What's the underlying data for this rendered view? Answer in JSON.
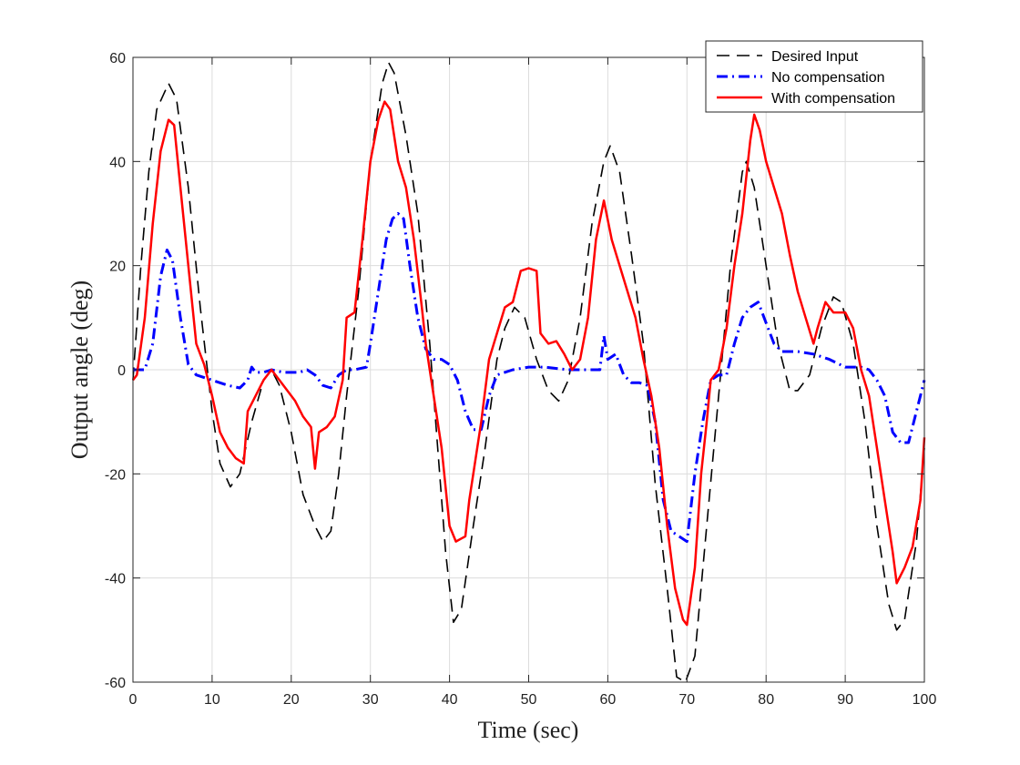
{
  "chart_data": {
    "type": "line",
    "title": "",
    "xlabel": "Time (sec)",
    "ylabel": "Output angle (deg)",
    "xlim": [
      0,
      100
    ],
    "ylim": [
      -60,
      60
    ],
    "xticks": [
      0,
      10,
      20,
      30,
      40,
      50,
      60,
      70,
      80,
      90,
      100
    ],
    "yticks": [
      -60,
      -40,
      -20,
      0,
      20,
      40,
      60
    ],
    "grid": true,
    "legend_position": "top-right",
    "series": [
      {
        "name": "Desired Input",
        "color": "#000000",
        "style": "dashed",
        "points": [
          [
            0,
            -2
          ],
          [
            1,
            20
          ],
          [
            2,
            38
          ],
          [
            3,
            50
          ],
          [
            4.5,
            55
          ],
          [
            5.5,
            52
          ],
          [
            7,
            35
          ],
          [
            8.5,
            12
          ],
          [
            10,
            -8
          ],
          [
            11,
            -18
          ],
          [
            12.3,
            -22.5
          ],
          [
            13.5,
            -20
          ],
          [
            15,
            -10
          ],
          [
            16.5,
            -2
          ],
          [
            17.5,
            0
          ],
          [
            18.5,
            -3
          ],
          [
            20,
            -12
          ],
          [
            21.5,
            -24
          ],
          [
            23,
            -30
          ],
          [
            24,
            -33
          ],
          [
            25,
            -31
          ],
          [
            26,
            -20
          ],
          [
            27,
            -5
          ],
          [
            28.5,
            15
          ],
          [
            30,
            40
          ],
          [
            31.5,
            55
          ],
          [
            32.3,
            59
          ],
          [
            33,
            57
          ],
          [
            34.5,
            45
          ],
          [
            36,
            30
          ],
          [
            37.5,
            5
          ],
          [
            38.5,
            -15
          ],
          [
            39.5,
            -35
          ],
          [
            40.5,
            -48.5
          ],
          [
            41.5,
            -46
          ],
          [
            43,
            -30
          ],
          [
            44.5,
            -15
          ],
          [
            46,
            2
          ],
          [
            47,
            8
          ],
          [
            48.2,
            12
          ],
          [
            49.5,
            10
          ],
          [
            51,
            2
          ],
          [
            52.5,
            -4
          ],
          [
            53.8,
            -6
          ],
          [
            55,
            -2
          ],
          [
            56.5,
            10
          ],
          [
            58,
            28
          ],
          [
            59.5,
            40
          ],
          [
            60.3,
            43
          ],
          [
            61.5,
            38
          ],
          [
            63,
            22
          ],
          [
            64.5,
            5
          ],
          [
            66,
            -22
          ],
          [
            67.5,
            -42
          ],
          [
            68.7,
            -59
          ],
          [
            69.8,
            -60
          ],
          [
            71,
            -55
          ],
          [
            72.5,
            -30
          ],
          [
            74,
            -5
          ],
          [
            75.5,
            20
          ],
          [
            77,
            38
          ],
          [
            77.5,
            40
          ],
          [
            78.5,
            35
          ],
          [
            80,
            20
          ],
          [
            81.5,
            5
          ],
          [
            83,
            -4
          ],
          [
            84,
            -4
          ],
          [
            85.5,
            -1
          ],
          [
            87,
            8
          ],
          [
            88.5,
            14
          ],
          [
            89.5,
            13
          ],
          [
            91,
            5
          ],
          [
            92.5,
            -10
          ],
          [
            94,
            -30
          ],
          [
            95.5,
            -45
          ],
          [
            96.5,
            -50
          ],
          [
            97.5,
            -48
          ],
          [
            99,
            -33
          ],
          [
            100,
            -15
          ]
        ]
      },
      {
        "name": "No compensation",
        "color": "#0000ff",
        "style": "dashdot",
        "points": [
          [
            0,
            0
          ],
          [
            1.5,
            0
          ],
          [
            2.5,
            5
          ],
          [
            3.5,
            18
          ],
          [
            4.3,
            23
          ],
          [
            5,
            21
          ],
          [
            6,
            10
          ],
          [
            7,
            1
          ],
          [
            8,
            -1
          ],
          [
            10,
            -2
          ],
          [
            12,
            -3
          ],
          [
            13.5,
            -3.5
          ],
          [
            14.5,
            -2
          ],
          [
            15,
            0.5
          ],
          [
            15.5,
            -0.5
          ],
          [
            16.5,
            -0.5
          ],
          [
            17.5,
            0
          ],
          [
            19,
            -0.5
          ],
          [
            21,
            -0.5
          ],
          [
            22,
            0
          ],
          [
            23,
            -1
          ],
          [
            24,
            -3
          ],
          [
            25,
            -3.5
          ],
          [
            26,
            -1
          ],
          [
            27,
            0
          ],
          [
            28,
            0
          ],
          [
            29.5,
            0.5
          ],
          [
            30,
            5
          ],
          [
            31,
            15
          ],
          [
            32,
            25
          ],
          [
            32.8,
            29
          ],
          [
            33.5,
            30
          ],
          [
            34.2,
            29
          ],
          [
            35,
            20
          ],
          [
            36,
            10
          ],
          [
            37,
            4
          ],
          [
            38,
            2
          ],
          [
            39,
            2
          ],
          [
            40,
            1
          ],
          [
            41,
            -2
          ],
          [
            42,
            -8
          ],
          [
            43,
            -11.5
          ],
          [
            44,
            -11.5
          ],
          [
            45,
            -5
          ],
          [
            46,
            -1
          ],
          [
            48,
            0
          ],
          [
            50,
            0.5
          ],
          [
            52,
            0.5
          ],
          [
            55,
            0
          ],
          [
            59,
            0
          ],
          [
            59.5,
            6.5
          ],
          [
            60,
            2
          ],
          [
            61,
            3
          ],
          [
            62,
            -1
          ],
          [
            63,
            -2.5
          ],
          [
            64,
            -2.5
          ],
          [
            65,
            -3
          ],
          [
            66,
            -10
          ],
          [
            67,
            -25
          ],
          [
            68,
            -31
          ],
          [
            69,
            -32
          ],
          [
            70,
            -33
          ],
          [
            71,
            -20
          ],
          [
            72,
            -10
          ],
          [
            73,
            -2
          ],
          [
            74,
            -1
          ],
          [
            75,
            -1
          ],
          [
            76,
            5
          ],
          [
            77,
            10
          ],
          [
            78,
            12
          ],
          [
            79,
            13
          ],
          [
            80,
            9
          ],
          [
            81,
            5
          ],
          [
            82,
            3.5
          ],
          [
            84,
            3.5
          ],
          [
            86,
            3
          ],
          [
            88,
            2
          ],
          [
            90,
            0.5
          ],
          [
            92,
            0.5
          ],
          [
            93,
            0
          ],
          [
            94,
            -2
          ],
          [
            95,
            -5
          ],
          [
            96,
            -12
          ],
          [
            97,
            -14
          ],
          [
            98,
            -14
          ],
          [
            99,
            -8
          ],
          [
            100,
            -2
          ]
        ]
      },
      {
        "name": "With compensation",
        "color": "#ff0000",
        "style": "solid",
        "points": [
          [
            0,
            -2
          ],
          [
            0.5,
            -1
          ],
          [
            1.5,
            10
          ],
          [
            2.5,
            28
          ],
          [
            3.5,
            42
          ],
          [
            4.5,
            48
          ],
          [
            5.2,
            47
          ],
          [
            6,
            35
          ],
          [
            7,
            20
          ],
          [
            8,
            5
          ],
          [
            9,
            1
          ],
          [
            10,
            -5
          ],
          [
            11,
            -12
          ],
          [
            12,
            -15
          ],
          [
            13,
            -17
          ],
          [
            14,
            -18
          ],
          [
            14.5,
            -8
          ],
          [
            15.5,
            -5
          ],
          [
            16.5,
            -2
          ],
          [
            17.5,
            0
          ],
          [
            18.5,
            -2
          ],
          [
            19.5,
            -4
          ],
          [
            20.5,
            -6
          ],
          [
            21.5,
            -9
          ],
          [
            22.5,
            -11
          ],
          [
            23,
            -19
          ],
          [
            23.5,
            -12
          ],
          [
            24.5,
            -11
          ],
          [
            25.5,
            -9
          ],
          [
            26.5,
            -2
          ],
          [
            27,
            10
          ],
          [
            28,
            11
          ],
          [
            29,
            25
          ],
          [
            30,
            40
          ],
          [
            31,
            48
          ],
          [
            31.8,
            51.5
          ],
          [
            32.5,
            50
          ],
          [
            33.5,
            40
          ],
          [
            34.5,
            35
          ],
          [
            35.5,
            25
          ],
          [
            36.5,
            12
          ],
          [
            37,
            5
          ],
          [
            38,
            -5
          ],
          [
            39,
            -15
          ],
          [
            40,
            -30
          ],
          [
            40.8,
            -33
          ],
          [
            42,
            -32
          ],
          [
            42.5,
            -25
          ],
          [
            43,
            -20
          ],
          [
            44,
            -10
          ],
          [
            45,
            2
          ],
          [
            46,
            7
          ],
          [
            47,
            12
          ],
          [
            48,
            13
          ],
          [
            49,
            19
          ],
          [
            50,
            19.5
          ],
          [
            51,
            19
          ],
          [
            51.5,
            7
          ],
          [
            52.5,
            5
          ],
          [
            53.5,
            5.5
          ],
          [
            54.5,
            3
          ],
          [
            55.5,
            0
          ],
          [
            56.5,
            2
          ],
          [
            57.5,
            10
          ],
          [
            58.5,
            25
          ],
          [
            59.5,
            32.5
          ],
          [
            60.5,
            25
          ],
          [
            61.5,
            20
          ],
          [
            62.5,
            15
          ],
          [
            63.5,
            10
          ],
          [
            64.5,
            2
          ],
          [
            65.5,
            -5
          ],
          [
            66.5,
            -15
          ],
          [
            67.5,
            -30
          ],
          [
            68.5,
            -42
          ],
          [
            69.5,
            -48
          ],
          [
            70,
            -49
          ],
          [
            71,
            -38
          ],
          [
            71.8,
            -20
          ],
          [
            72.5,
            -10
          ],
          [
            73,
            -2
          ],
          [
            74,
            0
          ],
          [
            75,
            8
          ],
          [
            76,
            20
          ],
          [
            77,
            30
          ],
          [
            78,
            44
          ],
          [
            78.5,
            49
          ],
          [
            79.2,
            46
          ],
          [
            80,
            40
          ],
          [
            81,
            35
          ],
          [
            82,
            30
          ],
          [
            83,
            22
          ],
          [
            84,
            15
          ],
          [
            85,
            10
          ],
          [
            86,
            5
          ],
          [
            86.5,
            8
          ],
          [
            87.5,
            13
          ],
          [
            88.5,
            11
          ],
          [
            90,
            11
          ],
          [
            91,
            8
          ],
          [
            92,
            0
          ],
          [
            93,
            -5
          ],
          [
            94,
            -15
          ],
          [
            95,
            -25
          ],
          [
            96,
            -35
          ],
          [
            96.5,
            -41
          ],
          [
            97.5,
            -38
          ],
          [
            98.5,
            -34
          ],
          [
            99.5,
            -25
          ],
          [
            100,
            -13
          ]
        ]
      }
    ]
  }
}
